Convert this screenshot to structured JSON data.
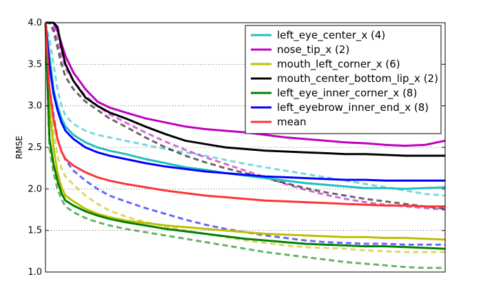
{
  "chart_data": {
    "type": "line",
    "title": "",
    "xlabel": "",
    "ylabel": "RMSE",
    "ylim": [
      1.0,
      4.0
    ],
    "xlim": [
      0,
      100
    ],
    "yticks": [
      "1.0",
      "1.5",
      "2.0",
      "2.5",
      "3.0",
      "3.5",
      "4.0"
    ],
    "ytick_values": [
      1.0,
      1.5,
      2.0,
      2.5,
      3.0,
      3.5,
      4.0
    ],
    "grid": "y-dotted",
    "legend_position": "top-right",
    "x": [
      0,
      1,
      2,
      3,
      4,
      5,
      7,
      10,
      13,
      16,
      20,
      25,
      30,
      35,
      40,
      45,
      50,
      55,
      60,
      65,
      70,
      75,
      80,
      85,
      90,
      95,
      100
    ],
    "series": [
      {
        "name": "left_eye_center_x (4)",
        "color": "#1fbfbf",
        "solid": [
          4.0,
          3.6,
          3.2,
          3.0,
          2.85,
          2.75,
          2.65,
          2.56,
          2.5,
          2.46,
          2.42,
          2.36,
          2.31,
          2.26,
          2.23,
          2.19,
          2.16,
          2.13,
          2.1,
          2.07,
          2.05,
          2.03,
          2.01,
          2.01,
          2.0,
          2.01,
          2.02
        ],
        "dashed": [
          4.0,
          3.8,
          3.5,
          3.2,
          3.0,
          2.88,
          2.78,
          2.7,
          2.65,
          2.62,
          2.58,
          2.53,
          2.48,
          2.44,
          2.4,
          2.35,
          2.3,
          2.26,
          2.22,
          2.18,
          2.14,
          2.1,
          2.06,
          2.02,
          1.98,
          1.94,
          1.92
        ]
      },
      {
        "name": "nose_tip_x (2)",
        "color": "#bf00bf",
        "solid": [
          4.0,
          4.0,
          4.0,
          3.9,
          3.75,
          3.6,
          3.4,
          3.2,
          3.05,
          2.98,
          2.92,
          2.85,
          2.8,
          2.75,
          2.72,
          2.7,
          2.68,
          2.65,
          2.62,
          2.6,
          2.58,
          2.56,
          2.55,
          2.53,
          2.52,
          2.53,
          2.58
        ],
        "dashed": [
          4.0,
          4.0,
          3.95,
          3.8,
          3.6,
          3.45,
          3.3,
          3.12,
          3.0,
          2.9,
          2.8,
          2.68,
          2.57,
          2.47,
          2.38,
          2.3,
          2.22,
          2.14,
          2.06,
          1.99,
          1.93,
          1.88,
          1.84,
          1.81,
          1.79,
          1.77,
          1.75
        ]
      },
      {
        "name": "mouth_left_corner_x (6)",
        "color": "#bfbf00",
        "solid": [
          4.0,
          3.0,
          2.5,
          2.2,
          2.02,
          1.92,
          1.85,
          1.76,
          1.7,
          1.66,
          1.62,
          1.59,
          1.56,
          1.54,
          1.52,
          1.5,
          1.48,
          1.46,
          1.45,
          1.44,
          1.43,
          1.42,
          1.42,
          1.41,
          1.41,
          1.4,
          1.39
        ],
        "dashed": [
          4.0,
          3.2,
          2.7,
          2.4,
          2.25,
          2.15,
          2.05,
          1.92,
          1.82,
          1.74,
          1.67,
          1.6,
          1.55,
          1.5,
          1.46,
          1.42,
          1.38,
          1.35,
          1.32,
          1.3,
          1.29,
          1.28,
          1.26,
          1.25,
          1.24,
          1.24,
          1.24
        ]
      },
      {
        "name": "mouth_center_bottom_lip_x (2)",
        "color": "#000000",
        "solid": [
          4.0,
          4.0,
          4.0,
          3.95,
          3.7,
          3.5,
          3.3,
          3.1,
          3.0,
          2.92,
          2.85,
          2.75,
          2.66,
          2.58,
          2.54,
          2.5,
          2.48,
          2.46,
          2.45,
          2.44,
          2.43,
          2.42,
          2.42,
          2.41,
          2.4,
          2.4,
          2.4
        ],
        "dashed": [
          4.0,
          4.0,
          3.9,
          3.7,
          3.5,
          3.35,
          3.2,
          3.05,
          2.95,
          2.85,
          2.75,
          2.62,
          2.5,
          2.4,
          2.32,
          2.25,
          2.19,
          2.13,
          2.07,
          2.01,
          1.96,
          1.92,
          1.88,
          1.85,
          1.82,
          1.79,
          1.76
        ]
      },
      {
        "name": "left_eye_inner_corner_x (8)",
        "color": "#008000",
        "solid": [
          4.0,
          2.6,
          2.3,
          2.1,
          1.95,
          1.86,
          1.8,
          1.73,
          1.68,
          1.64,
          1.6,
          1.56,
          1.52,
          1.49,
          1.46,
          1.43,
          1.4,
          1.38,
          1.36,
          1.34,
          1.33,
          1.32,
          1.31,
          1.31,
          1.3,
          1.29,
          1.28
        ],
        "dashed": [
          4.0,
          2.5,
          2.2,
          2.0,
          1.88,
          1.79,
          1.72,
          1.65,
          1.6,
          1.56,
          1.52,
          1.48,
          1.44,
          1.4,
          1.36,
          1.32,
          1.28,
          1.24,
          1.21,
          1.18,
          1.15,
          1.12,
          1.1,
          1.08,
          1.06,
          1.05,
          1.05
        ]
      },
      {
        "name": "left_eyebrow_inner_end_x (8)",
        "color": "#0000ff",
        "solid": [
          4.0,
          3.5,
          3.15,
          2.95,
          2.8,
          2.7,
          2.6,
          2.5,
          2.44,
          2.4,
          2.36,
          2.31,
          2.27,
          2.24,
          2.21,
          2.19,
          2.17,
          2.15,
          2.14,
          2.13,
          2.12,
          2.11,
          2.11,
          2.1,
          2.1,
          2.1,
          2.1
        ],
        "dashed": [
          4.0,
          3.2,
          2.9,
          2.6,
          2.45,
          2.35,
          2.22,
          2.1,
          2.0,
          1.92,
          1.85,
          1.77,
          1.7,
          1.63,
          1.57,
          1.52,
          1.48,
          1.44,
          1.41,
          1.38,
          1.36,
          1.35,
          1.34,
          1.34,
          1.33,
          1.33,
          1.33
        ]
      },
      {
        "name": "mean",
        "color": "#ff3333",
        "solid": [
          4.0,
          3.2,
          2.85,
          2.6,
          2.45,
          2.36,
          2.28,
          2.2,
          2.14,
          2.1,
          2.06,
          2.02,
          1.98,
          1.95,
          1.92,
          1.9,
          1.88,
          1.86,
          1.85,
          1.84,
          1.83,
          1.82,
          1.81,
          1.8,
          1.8,
          1.79,
          1.79
        ],
        "dashed": null
      }
    ]
  }
}
